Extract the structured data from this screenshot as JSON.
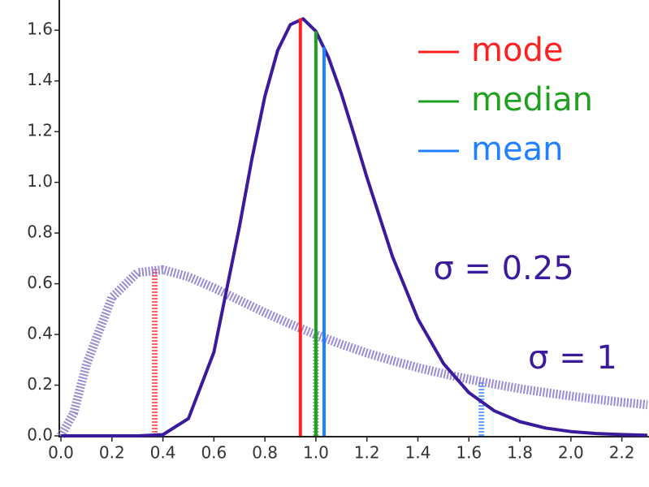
{
  "chart_data": {
    "type": "line",
    "xlim": [
      0,
      2.3
    ],
    "ylim": [
      0,
      1.7
    ],
    "xticks": [
      {
        "value": 0,
        "label": "0.0"
      },
      0.2,
      0.4,
      0.6,
      0.8,
      {
        "value": 1,
        "label": "1.0"
      },
      1.2,
      1.4,
      1.6,
      1.8,
      {
        "value": 2,
        "label": "2.0"
      },
      2.2
    ],
    "yticks": [
      {
        "value": 0,
        "label": "0.0"
      },
      0.2,
      0.4,
      0.6,
      0.8,
      {
        "value": 1,
        "label": "1.0"
      },
      1.2,
      1.4,
      1.6
    ],
    "legend": "upper right",
    "series": [
      {
        "name": "σ = 0.25",
        "color": "#3b1a9c",
        "style": "solid",
        "x": [
          0,
          0.3,
          0.4,
          0.5,
          0.6,
          0.7,
          0.75,
          0.8,
          0.85,
          0.9,
          0.95,
          1.0,
          1.05,
          1.1,
          1.15,
          1.2,
          1.3,
          1.4,
          1.5,
          1.6,
          1.7,
          1.8,
          1.9,
          2.0,
          2.1,
          2.2,
          2.3
        ],
        "values": [
          0,
          0,
          0.0048,
          0.0683,
          0.3298,
          0.8241,
          1.0973,
          1.3393,
          1.5198,
          1.6222,
          1.6449,
          1.5958,
          1.4911,
          1.349,
          1.1869,
          1.0193,
          0.7077,
          0.4609,
          0.2855,
          0.1704,
          0.0987,
          0.0559,
          0.0311,
          0.0171,
          0.0093,
          0.005,
          0.0027
        ]
      },
      {
        "name": "σ = 1",
        "color": "#8877cc",
        "style": "dotted",
        "x": [
          0,
          0.05,
          0.1,
          0.2,
          0.3,
          0.4,
          0.5,
          0.6,
          0.7,
          0.8,
          0.9,
          1.0,
          1.1,
          1.2,
          1.3,
          1.4,
          1.5,
          1.6,
          1.7,
          1.8,
          1.9,
          2.0,
          2.1,
          2.2,
          2.3
        ],
        "values": [
          0,
          0.0898,
          0.2816,
          0.5463,
          0.6441,
          0.6555,
          0.6275,
          0.5836,
          0.5348,
          0.4864,
          0.4408,
          0.3989,
          0.361,
          0.3269,
          0.2965,
          0.2693,
          0.245,
          0.2232,
          0.2039,
          0.1864,
          0.1709,
          0.1569,
          0.1443,
          0.1329,
          0.1226
        ]
      }
    ],
    "markers": [
      {
        "name": "mode",
        "color": "#ff2020",
        "lines": [
          {
            "x": 0.939,
            "height": 1.647,
            "style": "solid"
          },
          {
            "x": 0.368,
            "height": 0.658,
            "style": "dotted"
          }
        ]
      },
      {
        "name": "median",
        "color": "#20a020",
        "lines": [
          {
            "x": 1.0,
            "height": 1.596,
            "style": "solid"
          },
          {
            "x": 1.0,
            "height": 0.399,
            "style": "dotted"
          }
        ]
      },
      {
        "name": "mean",
        "color": "#2080ff",
        "lines": [
          {
            "x": 1.032,
            "height": 1.534,
            "style": "solid"
          },
          {
            "x": 1.649,
            "height": 0.214,
            "style": "dotted"
          }
        ]
      }
    ]
  }
}
